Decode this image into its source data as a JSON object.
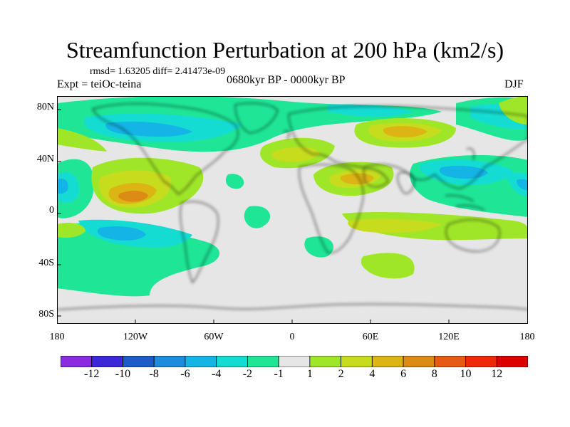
{
  "title": "Streamfunction Perturbation at 200 hPa (km2/s)",
  "stats": "rmsd= 1.63205  diff= 2.41473e-09",
  "experiment": "Expt = teiOc-teina",
  "period": "0680kyr BP - 0000kyr BP",
  "season": "DJF",
  "lat_labels": [
    "80N",
    "40N",
    "0",
    "40S",
    "80S"
  ],
  "lon_labels": [
    "180",
    "120W",
    "60W",
    "0",
    "60E",
    "120E",
    "180"
  ],
  "colorbar": {
    "labels": [
      "-12",
      "-10",
      "-8",
      "-6",
      "-4",
      "-2",
      "-1",
      "1",
      "2",
      "4",
      "6",
      "8",
      "10",
      "12"
    ],
    "colors": [
      "#8a2be2",
      "#3c28d8",
      "#1e5ac8",
      "#1e8cdc",
      "#14b4e6",
      "#14dcd2",
      "#1ee696",
      "#e6e6e6",
      "#a0e628",
      "#c8dc1e",
      "#dcb414",
      "#dc8c14",
      "#e65a14",
      "#f0280a",
      "#dc0000"
    ]
  }
}
